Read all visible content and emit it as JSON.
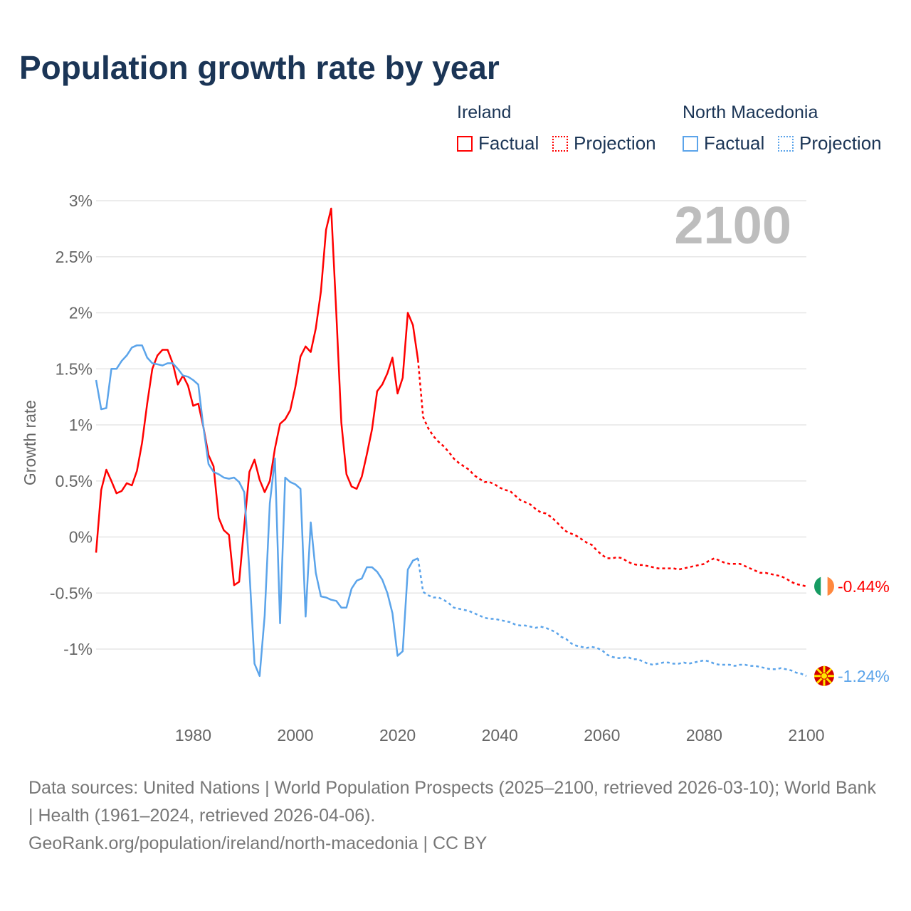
{
  "title": "Population growth rate by year",
  "legend": {
    "groups": [
      {
        "name": "Ireland",
        "factual": "Factual",
        "projection": "Projection",
        "color": "#ff0000"
      },
      {
        "name": "North Macedonia",
        "factual": "Factual",
        "projection": "Projection",
        "color": "#5ba4ea"
      }
    ]
  },
  "year_label": "2100",
  "footer": {
    "line1": "Data sources: United Nations | World Population Prospects (2025–2100, retrieved 2026-03-10); World Bank | Health (1961–2024, retrieved 2026-04-06).",
    "line2": "GeoRank.org/population/ireland/north-macedonia | CC BY"
  },
  "chart_data": {
    "type": "line",
    "title": "Population growth rate by year",
    "xlabel": "",
    "ylabel": "Growth rate",
    "xlim": [
      1961,
      2100
    ],
    "ylim": [
      -1.5,
      3
    ],
    "x_ticks": [
      1980,
      2000,
      2020,
      2040,
      2060,
      2080,
      2100
    ],
    "y_ticks": [
      {
        "value": 3,
        "label": "3%"
      },
      {
        "value": 2.5,
        "label": "2.5%"
      },
      {
        "value": 2,
        "label": "2%"
      },
      {
        "value": 1.5,
        "label": "1.5%"
      },
      {
        "value": 1,
        "label": "1%"
      },
      {
        "value": 0.5,
        "label": "0.5%"
      },
      {
        "value": 0,
        "label": "0%"
      },
      {
        "value": -0.5,
        "label": "-0.5%"
      },
      {
        "value": -1,
        "label": "-1%"
      }
    ],
    "grid": true,
    "factual_start": 1961,
    "projection_start": 2025,
    "series": [
      {
        "name": "Ireland",
        "color": "#ff0000",
        "end_label": "-0.44%",
        "factual": [
          -0.14,
          0.42,
          0.6,
          0.5,
          0.39,
          0.41,
          0.48,
          0.46,
          0.59,
          0.84,
          1.19,
          1.5,
          1.62,
          1.67,
          1.67,
          1.55,
          1.36,
          1.44,
          1.35,
          1.17,
          1.19,
          0.98,
          0.73,
          0.63,
          0.17,
          0.06,
          0.02,
          -0.43,
          -0.4,
          0.1,
          0.58,
          0.69,
          0.51,
          0.4,
          0.5,
          0.79,
          1.01,
          1.05,
          1.13,
          1.34,
          1.61,
          1.7,
          1.65,
          1.86,
          2.19,
          2.74,
          2.93,
          2.0,
          1.02,
          0.56,
          0.45,
          0.43,
          0.54,
          0.74,
          0.96,
          1.3,
          1.36,
          1.46,
          1.6,
          1.28,
          1.42,
          2.0,
          1.89,
          1.58
        ],
        "projection": [
          1.07,
          0.97,
          0.9,
          0.85,
          0.81,
          0.76,
          0.7,
          0.66,
          0.63,
          0.6,
          0.55,
          0.52,
          0.49,
          0.49,
          0.47,
          0.44,
          0.42,
          0.41,
          0.37,
          0.33,
          0.31,
          0.29,
          0.25,
          0.22,
          0.21,
          0.18,
          0.14,
          0.09,
          0.05,
          0.03,
          0.01,
          -0.02,
          -0.05,
          -0.07,
          -0.12,
          -0.16,
          -0.19,
          -0.19,
          -0.18,
          -0.19,
          -0.22,
          -0.24,
          -0.25,
          -0.25,
          -0.26,
          -0.27,
          -0.28,
          -0.28,
          -0.28,
          -0.28,
          -0.29,
          -0.28,
          -0.27,
          -0.26,
          -0.25,
          -0.24,
          -0.21,
          -0.19,
          -0.21,
          -0.23,
          -0.24,
          -0.24,
          -0.24,
          -0.26,
          -0.28,
          -0.3,
          -0.32,
          -0.32,
          -0.33,
          -0.34,
          -0.35,
          -0.37,
          -0.4,
          -0.42,
          -0.43,
          -0.44
        ]
      },
      {
        "name": "North Macedonia",
        "color": "#5ba4ea",
        "end_label": "-1.24%",
        "factual": [
          1.4,
          1.14,
          1.15,
          1.5,
          1.5,
          1.57,
          1.62,
          1.69,
          1.71,
          1.71,
          1.6,
          1.55,
          1.54,
          1.53,
          1.55,
          1.55,
          1.5,
          1.44,
          1.43,
          1.4,
          1.36,
          0.98,
          0.65,
          0.58,
          0.56,
          0.53,
          0.52,
          0.53,
          0.49,
          0.4,
          -0.3,
          -1.13,
          -1.24,
          -0.7,
          0.3,
          0.7,
          -0.77,
          0.53,
          0.49,
          0.47,
          0.43,
          -0.71,
          0.13,
          -0.32,
          -0.53,
          -0.54,
          -0.56,
          -0.57,
          -0.63,
          -0.63,
          -0.46,
          -0.39,
          -0.37,
          -0.27,
          -0.27,
          -0.31,
          -0.38,
          -0.5,
          -0.68,
          -1.06,
          -1.02,
          -0.29,
          -0.21,
          -0.19
        ],
        "projection": [
          -0.49,
          -0.52,
          -0.54,
          -0.54,
          -0.56,
          -0.59,
          -0.63,
          -0.64,
          -0.65,
          -0.66,
          -0.68,
          -0.7,
          -0.72,
          -0.73,
          -0.73,
          -0.74,
          -0.75,
          -0.76,
          -0.78,
          -0.79,
          -0.79,
          -0.8,
          -0.81,
          -0.8,
          -0.81,
          -0.83,
          -0.85,
          -0.89,
          -0.91,
          -0.95,
          -0.97,
          -0.98,
          -0.99,
          -0.98,
          -0.99,
          -1.01,
          -1.05,
          -1.07,
          -1.08,
          -1.08,
          -1.07,
          -1.09,
          -1.09,
          -1.11,
          -1.13,
          -1.14,
          -1.13,
          -1.12,
          -1.12,
          -1.13,
          -1.13,
          -1.12,
          -1.13,
          -1.12,
          -1.11,
          -1.1,
          -1.11,
          -1.13,
          -1.14,
          -1.14,
          -1.14,
          -1.15,
          -1.14,
          -1.14,
          -1.15,
          -1.15,
          -1.16,
          -1.17,
          -1.18,
          -1.18,
          -1.17,
          -1.18,
          -1.19,
          -1.21,
          -1.22,
          -1.24
        ]
      }
    ]
  }
}
